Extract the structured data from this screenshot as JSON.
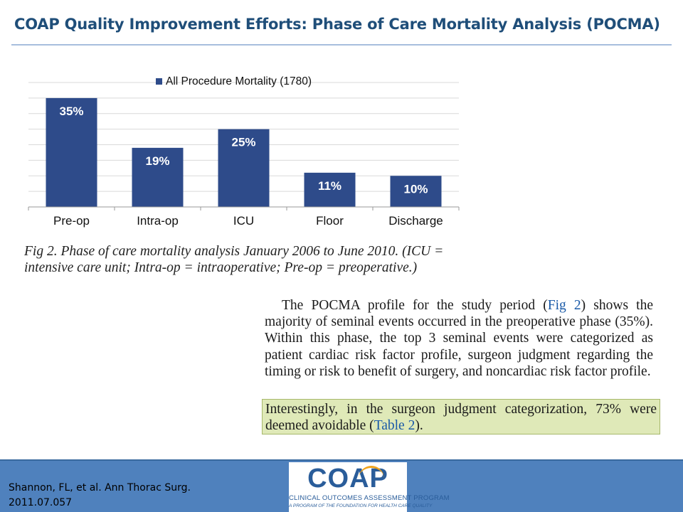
{
  "page": {
    "title": "COAP Quality Improvement Efforts: Phase of Care Mortality Analysis (POCMA)"
  },
  "chart_data": {
    "type": "bar",
    "title": "",
    "xlabel": "",
    "ylabel": "",
    "categories": [
      "Pre-op",
      "Intra-op",
      "ICU",
      "Floor",
      "Discharge"
    ],
    "series": [
      {
        "name": "All Procedure Mortality (1780)",
        "values": [
          35,
          19,
          25,
          11,
          10
        ],
        "color": "#2e4b8a"
      }
    ],
    "data_labels": [
      "35%",
      "19%",
      "25%",
      "11%",
      "10%"
    ],
    "ylim": [
      0,
      40
    ],
    "grid": true,
    "legend_position": "top"
  },
  "figure_caption": "Fig 2.  Phase of care mortality analysis January 2006 to June 2010. (ICU = intensive care unit; Intra-op = intraoperative; Pre-op = preoperative.)",
  "body_text": {
    "part1": "The POCMA profile for the study period (",
    "fig_ref": "Fig 2",
    "part2": ") shows the majority of seminal events occurred in the preoperative phase (35%). Within this phase, the top 3 seminal events were categorized as patient cardiac risk factor profile, surgeon judgment regarding the timing or risk to benefit of surgery, and noncardiac risk factor profile."
  },
  "highlight": {
    "part1": "Interestingly, in the surgeon judgment categorization, 73% were deemed avoidable (",
    "table_ref": "Table 2",
    "part2": ")."
  },
  "footer": {
    "citation_line1": "Shannon, FL, et al. Ann Thorac Surg.",
    "citation_line2": "2011.07.057",
    "logo_text": "COAP",
    "logo_program": "CLINICAL OUTCOMES ASSESSMENT PROGRAM",
    "logo_tagline": "A PROGRAM OF THE FOUNDATION FOR HEALTH CARE QUALITY",
    "accent_color": "#4f81bd",
    "logo_color": "#2a5d9a",
    "logo_arc_color": "#f0a31b"
  }
}
